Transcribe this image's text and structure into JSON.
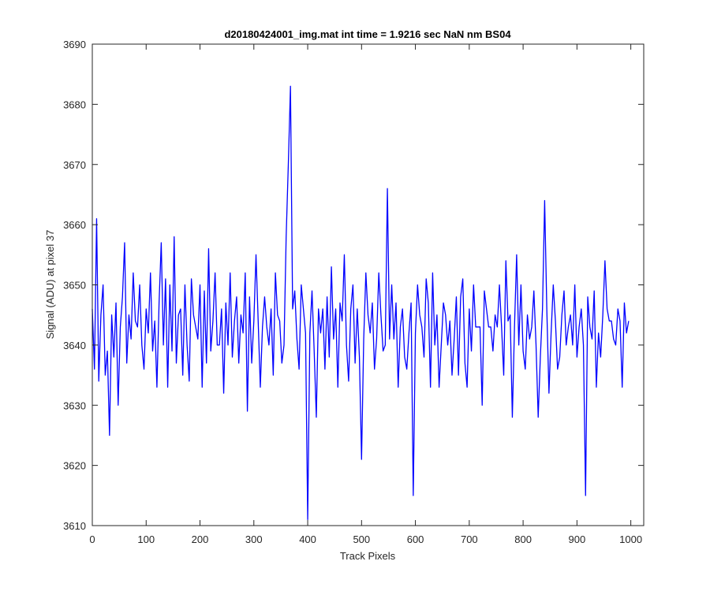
{
  "chart_data": {
    "type": "line",
    "title": "d20180424001_img.mat int time = 1.9216 sec  NaN nm BS04",
    "xlabel": "Track Pixels",
    "ylabel": "Signal (ADU) at pixel 37",
    "xlim": [
      0,
      1024
    ],
    "ylim": [
      3610,
      3690
    ],
    "xticks": [
      0,
      100,
      200,
      300,
      400,
      500,
      600,
      700,
      800,
      900,
      1000
    ],
    "yticks": [
      3610,
      3620,
      3630,
      3640,
      3650,
      3660,
      3670,
      3680,
      3690
    ],
    "xtick_labels": [
      "0",
      "100",
      "200",
      "300",
      "400",
      "500",
      "600",
      "700",
      "800",
      "900",
      "1000"
    ],
    "ytick_labels": [
      "3610",
      "3620",
      "3630",
      "3640",
      "3650",
      "3660",
      "3670",
      "3680",
      "3690"
    ],
    "grid": false,
    "series_color": "#0000ff",
    "series": [
      {
        "x_start": 0,
        "x_step": 4,
        "values": [
          3646,
          3636,
          3661,
          3634,
          3645,
          3650,
          3635,
          3639,
          3625,
          3645,
          3638,
          3647,
          3630,
          3643,
          3648,
          3657,
          3637,
          3645,
          3641,
          3652,
          3644,
          3643,
          3650,
          3640,
          3636,
          3646,
          3642,
          3652,
          3639,
          3644,
          3633,
          3647,
          3657,
          3640,
          3651,
          3633,
          3650,
          3639,
          3658,
          3637,
          3645,
          3646,
          3635,
          3650,
          3640,
          3634,
          3651,
          3645,
          3643,
          3641,
          3650,
          3633,
          3649,
          3637,
          3656,
          3639,
          3644,
          3652,
          3640,
          3640,
          3646,
          3632,
          3647,
          3640,
          3652,
          3638,
          3644,
          3648,
          3637,
          3645,
          3642,
          3652,
          3629,
          3648,
          3637,
          3644,
          3655,
          3644,
          3633,
          3643,
          3648,
          3643,
          3640,
          3646,
          3635,
          3652,
          3645,
          3644,
          3637,
          3640,
          3658,
          3670,
          3683,
          3646,
          3649,
          3641,
          3636,
          3650,
          3646,
          3642,
          3611,
          3642,
          3649,
          3639,
          3628,
          3646,
          3642,
          3646,
          3636,
          3648,
          3638,
          3653,
          3641,
          3646,
          3633,
          3647,
          3644,
          3655,
          3640,
          3634,
          3646,
          3650,
          3637,
          3646,
          3638,
          3621,
          3641,
          3652,
          3645,
          3642,
          3647,
          3636,
          3641,
          3652,
          3645,
          3639,
          3640,
          3666,
          3641,
          3650,
          3641,
          3647,
          3633,
          3643,
          3646,
          3638,
          3636,
          3642,
          3647,
          3615,
          3642,
          3650,
          3645,
          3643,
          3638,
          3651,
          3647,
          3633,
          3652,
          3640,
          3645,
          3633,
          3640,
          3647,
          3645,
          3640,
          3644,
          3635,
          3641,
          3648,
          3635,
          3648,
          3651,
          3637,
          3633,
          3646,
          3639,
          3650,
          3643,
          3643,
          3643,
          3630,
          3649,
          3646,
          3643,
          3643,
          3639,
          3645,
          3643,
          3650,
          3643,
          3635,
          3654,
          3644,
          3645,
          3628,
          3643,
          3655,
          3640,
          3650,
          3639,
          3636,
          3645,
          3641,
          3643,
          3649,
          3640,
          3628,
          3638,
          3646,
          3664,
          3646,
          3632,
          3642,
          3650,
          3644,
          3636,
          3638,
          3645,
          3649,
          3640,
          3643,
          3645,
          3640,
          3650,
          3638,
          3643,
          3646,
          3640,
          3615,
          3648,
          3643,
          3641,
          3649,
          3633,
          3642,
          3638,
          3645,
          3654,
          3646,
          3644,
          3644,
          3641,
          3640,
          3646,
          3644,
          3633,
          3647,
          3642,
          3644
        ]
      }
    ]
  }
}
